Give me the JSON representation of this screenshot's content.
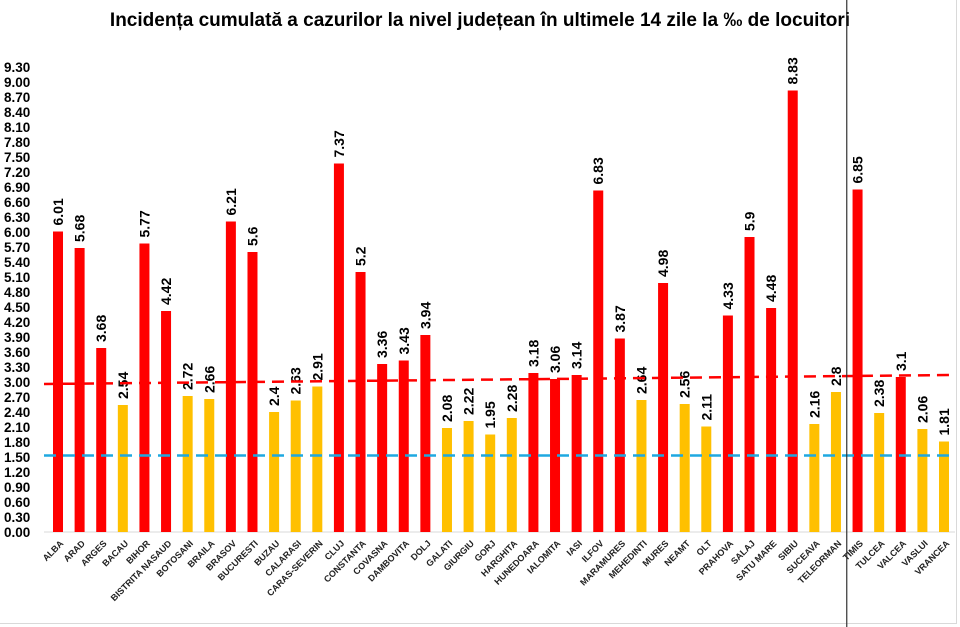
{
  "chart_data": {
    "type": "bar",
    "title": "Incidența cumulată a cazurilor la nivel județean în ultimele 14 zile la ‰ de locuitori",
    "xlabel": "",
    "ylabel": "",
    "ylim": [
      0,
      9.3
    ],
    "yticks": [
      "0.00",
      "0.30",
      "0.60",
      "0.90",
      "1.20",
      "1.50",
      "1.80",
      "2.10",
      "2.40",
      "2.70",
      "3.00",
      "3.30",
      "3.60",
      "3.90",
      "4.20",
      "4.50",
      "4.80",
      "5.10",
      "5.40",
      "5.70",
      "6.00",
      "6.30",
      "6.60",
      "6.90",
      "7.20",
      "7.50",
      "7.80",
      "8.10",
      "8.40",
      "8.70",
      "9.00",
      "9.30"
    ],
    "grid": false,
    "legend": "none",
    "categories": [
      "ALBA",
      "ARAD",
      "ARGES",
      "BACAU",
      "BIHOR",
      "BISTRITA NASAUD",
      "BOTOSANI",
      "BRAILA",
      "BRASOV",
      "BUCURESTI",
      "BUZAU",
      "CALARASI",
      "CARAS-SEVERIN",
      "CLUJ",
      "CONSTANTA",
      "COVASNA",
      "DAMBOVITA",
      "DOLJ",
      "GALATI",
      "GIURGIU",
      "GORJ",
      "HARGHITA",
      "HUNEDOARA",
      "IALOMITA",
      "IASI",
      "ILFOV",
      "MARAMURES",
      "MEHEDINTI",
      "MURES",
      "NEAMT",
      "OLT",
      "PRAHOVA",
      "SALAJ",
      "SATU MARE",
      "SIBIU",
      "SUCEAVA",
      "TELEORMAN",
      "TIMIS",
      "TULCEA",
      "VALCEA",
      "VASLUI",
      "VRANCEA"
    ],
    "values": [
      6.01,
      5.68,
      3.68,
      2.54,
      5.77,
      4.42,
      2.72,
      2.66,
      6.21,
      5.6,
      2.4,
      2.63,
      2.91,
      7.37,
      5.2,
      3.36,
      3.43,
      3.94,
      2.08,
      2.22,
      1.95,
      2.28,
      3.18,
      3.06,
      3.14,
      6.83,
      3.87,
      2.64,
      4.98,
      2.56,
      2.11,
      4.33,
      5.9,
      4.48,
      8.83,
      2.16,
      2.8,
      6.85,
      2.38,
      3.1,
      2.06,
      1.81
    ],
    "value_labels": [
      "6.01",
      "5.68",
      "3.68",
      "2.54",
      "5.77",
      "4.42",
      "2.72",
      "2.66",
      "6.21",
      "5.6",
      "2.4",
      "2.63",
      "2.91",
      "7.37",
      "5.2",
      "3.36",
      "3.43",
      "3.94",
      "2.08",
      "2.22",
      "1.95",
      "2.28",
      "3.18",
      "3.06",
      "3.14",
      "6.83",
      "3.87",
      "2.64",
      "4.98",
      "2.56",
      "2.11",
      "4.33",
      "5.9",
      "4.48",
      "8.83",
      "2.16",
      "2.8",
      "6.85",
      "2.38",
      "3.1",
      "2.06",
      "1.81"
    ],
    "colors": {
      "high": "#ff0000",
      "low": "#ffc000"
    },
    "bar_color_keys": [
      "high",
      "high",
      "high",
      "low",
      "high",
      "high",
      "low",
      "low",
      "high",
      "high",
      "low",
      "low",
      "low",
      "high",
      "high",
      "high",
      "high",
      "high",
      "low",
      "low",
      "low",
      "low",
      "high",
      "high",
      "high",
      "high",
      "high",
      "low",
      "high",
      "low",
      "low",
      "high",
      "high",
      "high",
      "high",
      "low",
      "low",
      "high",
      "low",
      "high",
      "low",
      "low"
    ],
    "reference_lines": [
      {
        "color": "#ff0000",
        "style": "dashed",
        "from": 2.96,
        "to": 3.14
      },
      {
        "color": "#1fa8e0",
        "style": "dashed",
        "from": 1.53,
        "to": 1.53
      }
    ],
    "separator_after": "TELEORMAN"
  }
}
